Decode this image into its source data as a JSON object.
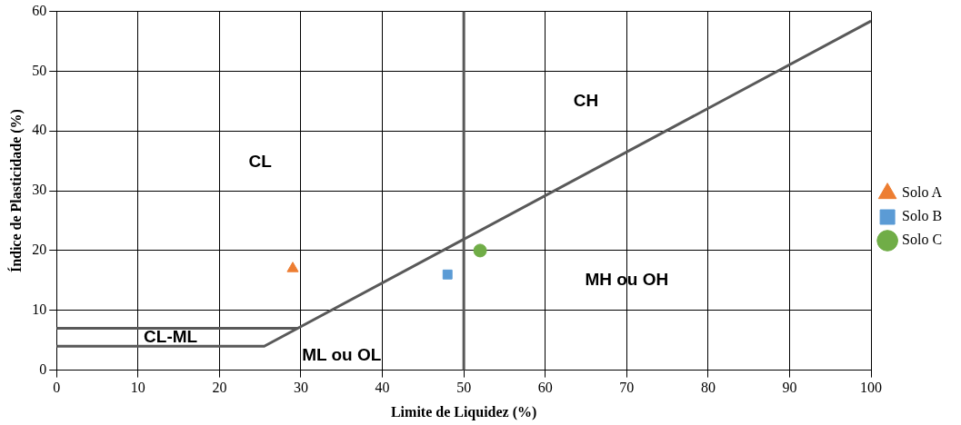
{
  "chart_data": {
    "type": "scatter",
    "xlabel": "Limite de Liquidez (%)",
    "ylabel": "Índice de Plasticidade (%)",
    "xlim": [
      0,
      100
    ],
    "xticks": [
      0,
      10,
      20,
      30,
      40,
      50,
      60,
      70,
      80,
      90,
      100
    ],
    "ylim": [
      0,
      60
    ],
    "yticks": [
      0,
      10,
      20,
      30,
      40,
      50,
      60
    ],
    "grid": true,
    "legend": "right",
    "series": [
      {
        "name": "Solo A",
        "color": "#ed7d31",
        "marker": "triangle",
        "x": [
          29
        ],
        "values": [
          17
        ]
      },
      {
        "name": "Solo B",
        "color": "#5b9bd5",
        "marker": "square",
        "x": [
          48
        ],
        "values": [
          16
        ]
      },
      {
        "name": "Solo C",
        "color": "#70ad47",
        "marker": "circle",
        "x": [
          52
        ],
        "values": [
          20
        ]
      },
      {
        "type": "line",
        "color": "#595959",
        "marker": "none",
        "x": [
          0,
          25.5,
          100
        ],
        "values": [
          4,
          4,
          58.4
        ]
      },
      {
        "type": "line",
        "color": "#595959",
        "marker": "none",
        "x": [
          0,
          29.6
        ],
        "values": [
          7,
          7
        ]
      }
    ],
    "ref_lines": [
      {
        "axis": "x",
        "value": 50,
        "color": "#595959"
      }
    ],
    "annotations": [
      "CL",
      "CH",
      "MH ou OH",
      "CL-ML",
      "ML ou OL"
    ]
  }
}
